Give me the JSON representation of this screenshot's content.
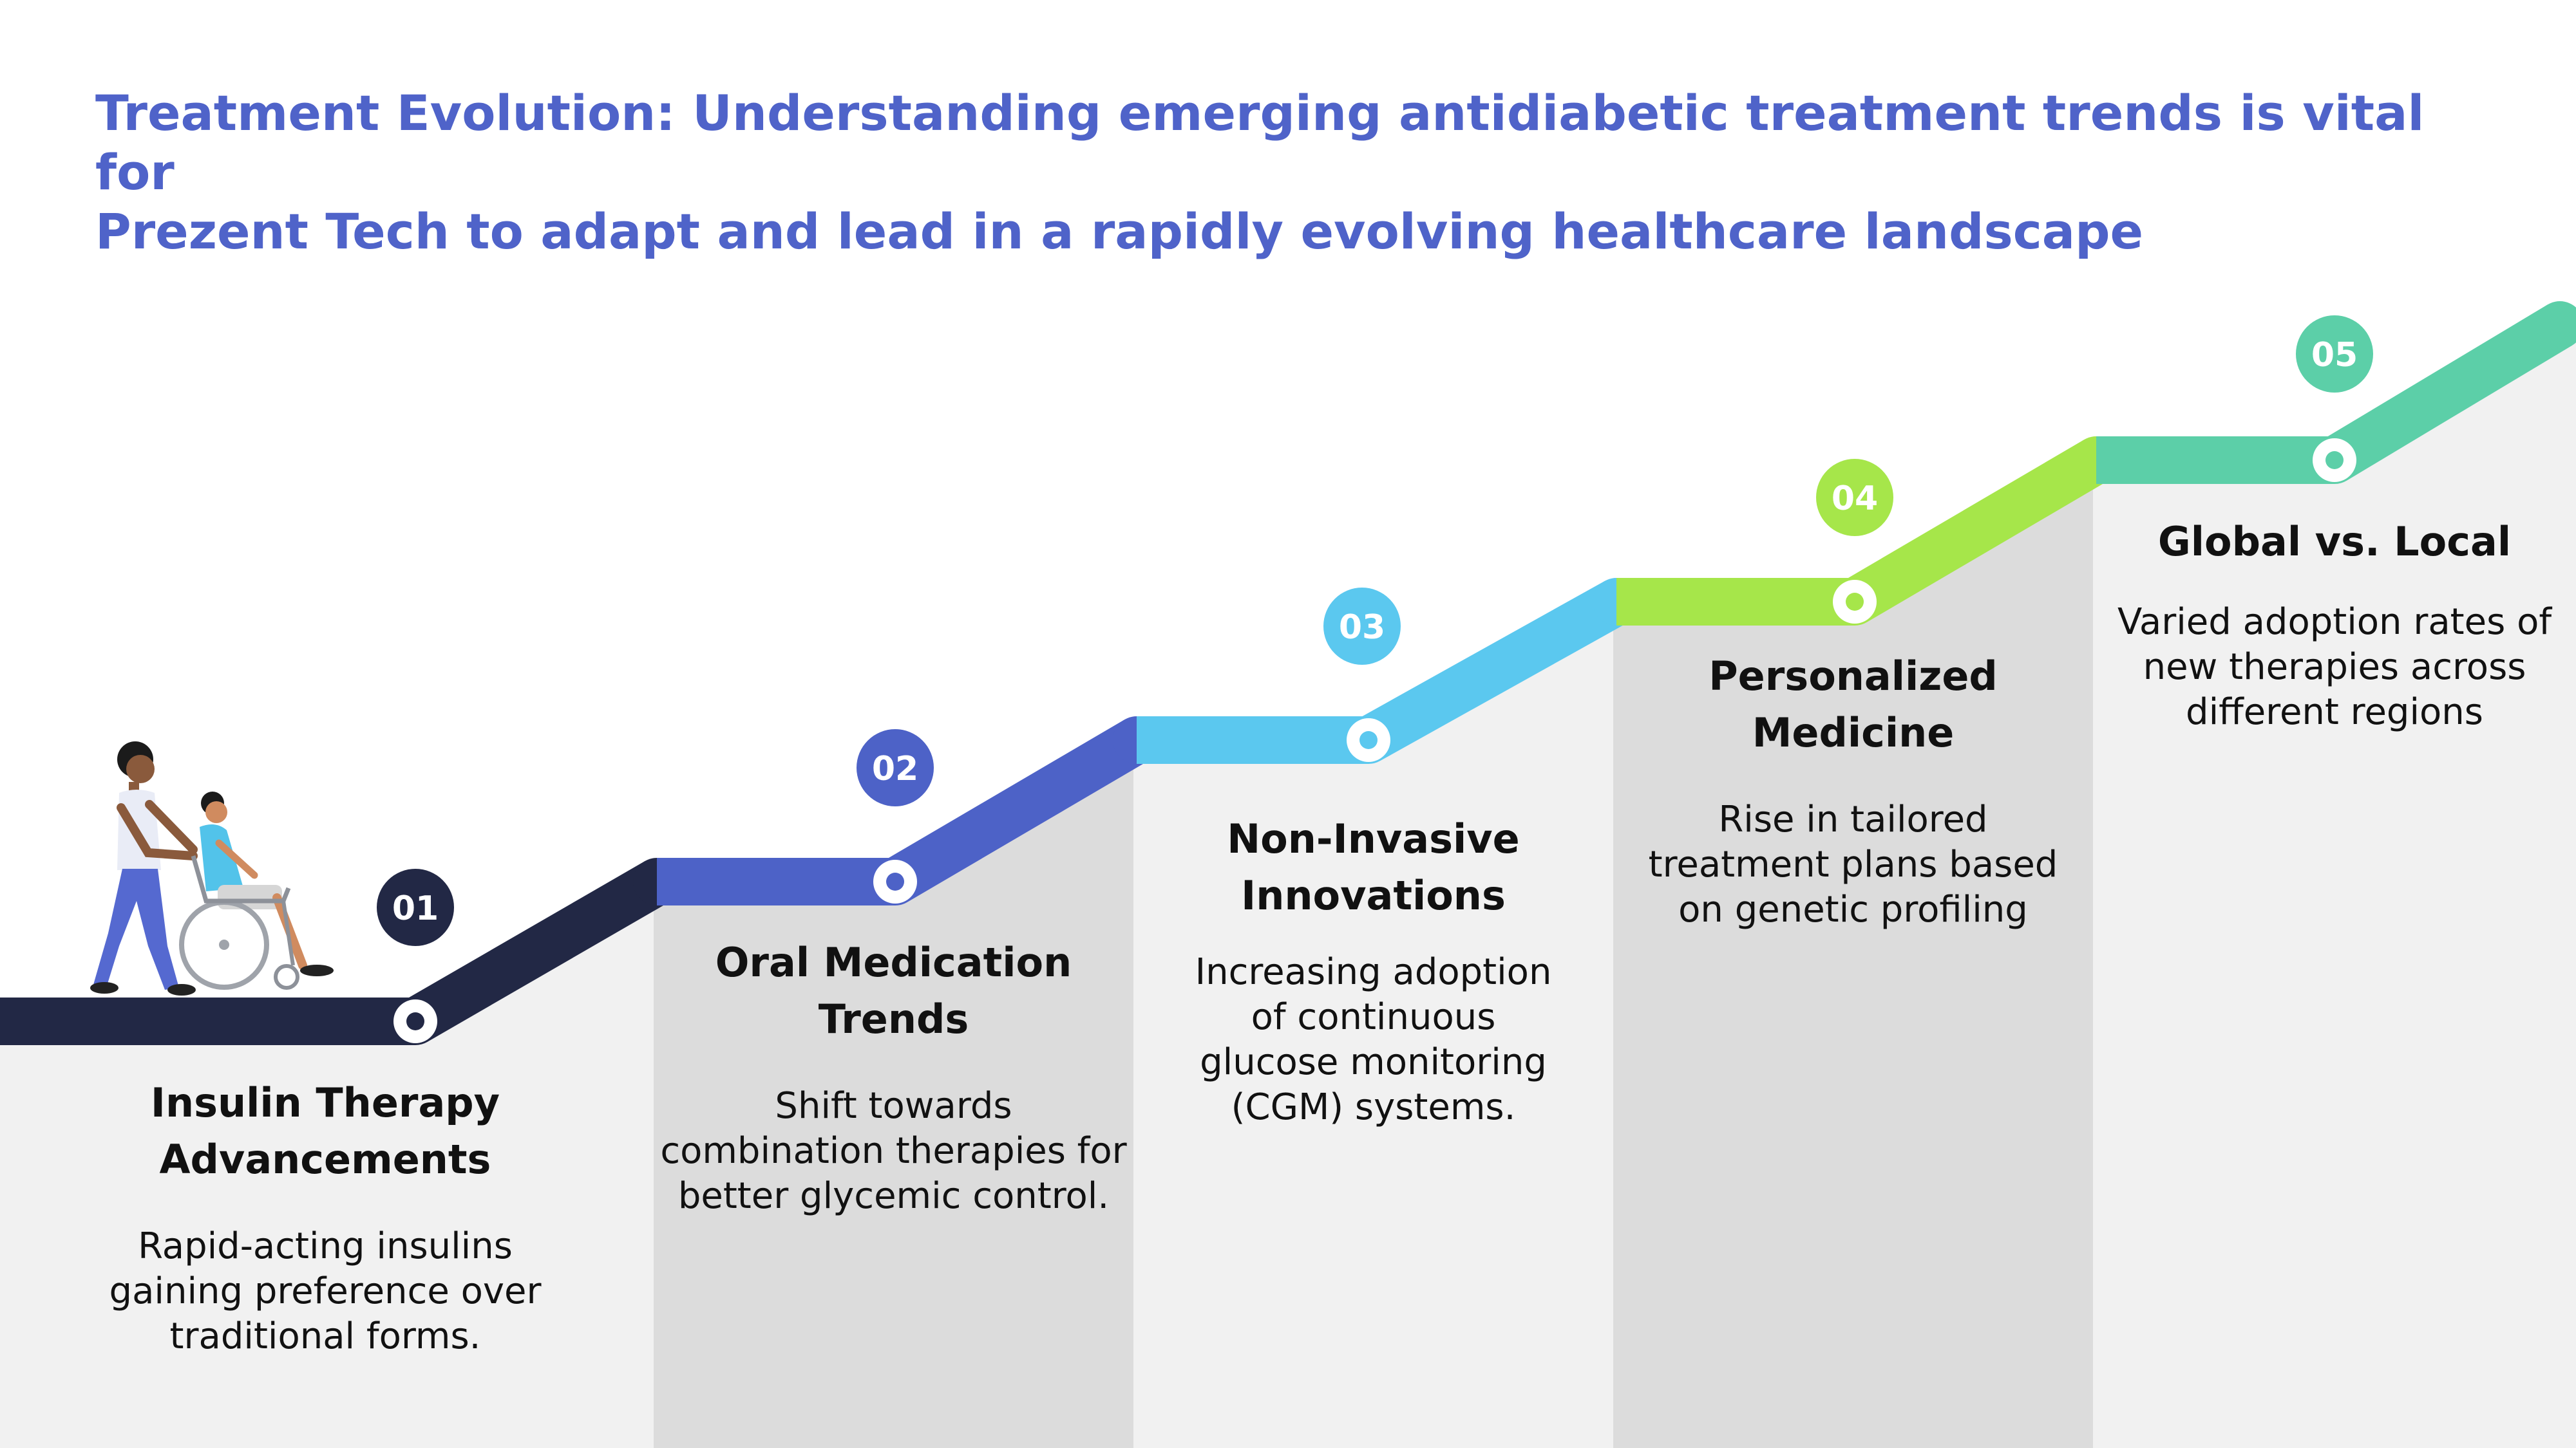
{
  "title": {
    "line1": "Treatment Evolution: Understanding emerging antidiabetic treatment trends is vital for",
    "line2": "Prezent Tech to adapt and lead in a rapidly evolving healthcare landscape"
  },
  "steps": [
    {
      "number": "01",
      "color": "#222845",
      "heading": [
        "Insulin Therapy",
        "Advancements"
      ],
      "description": [
        "Rapid-acting insulins",
        "gaining preference over",
        "traditional forms."
      ]
    },
    {
      "number": "02",
      "color": "#4d62c7",
      "heading": [
        "Oral Medication",
        "Trends"
      ],
      "description": [
        "Shift towards",
        "combination therapies for",
        "better glycemic control."
      ]
    },
    {
      "number": "03",
      "color": "#5bc8ef",
      "heading": [
        "Non-Invasive",
        "Innovations"
      ],
      "description": [
        "Increasing adoption",
        "of continuous",
        "glucose monitoring",
        "(CGM) systems."
      ]
    },
    {
      "number": "04",
      "color": "#a6e64a",
      "heading": [
        "Personalized",
        "Medicine"
      ],
      "description": [
        "Rise in tailored",
        "treatment plans based",
        "on genetic profiling"
      ]
    },
    {
      "number": "05",
      "color": "#5ccfa8",
      "heading": [
        "Global vs. Local"
      ],
      "description": [
        "Varied adoption rates of",
        "new therapies across",
        "different regions"
      ]
    }
  ],
  "illustration": "caregiver-pushing-wheelchair",
  "colors": {
    "title": "#4f63c9",
    "step_light_bg": "#f1f1f1",
    "step_dark_bg": "#dcdcdc"
  }
}
